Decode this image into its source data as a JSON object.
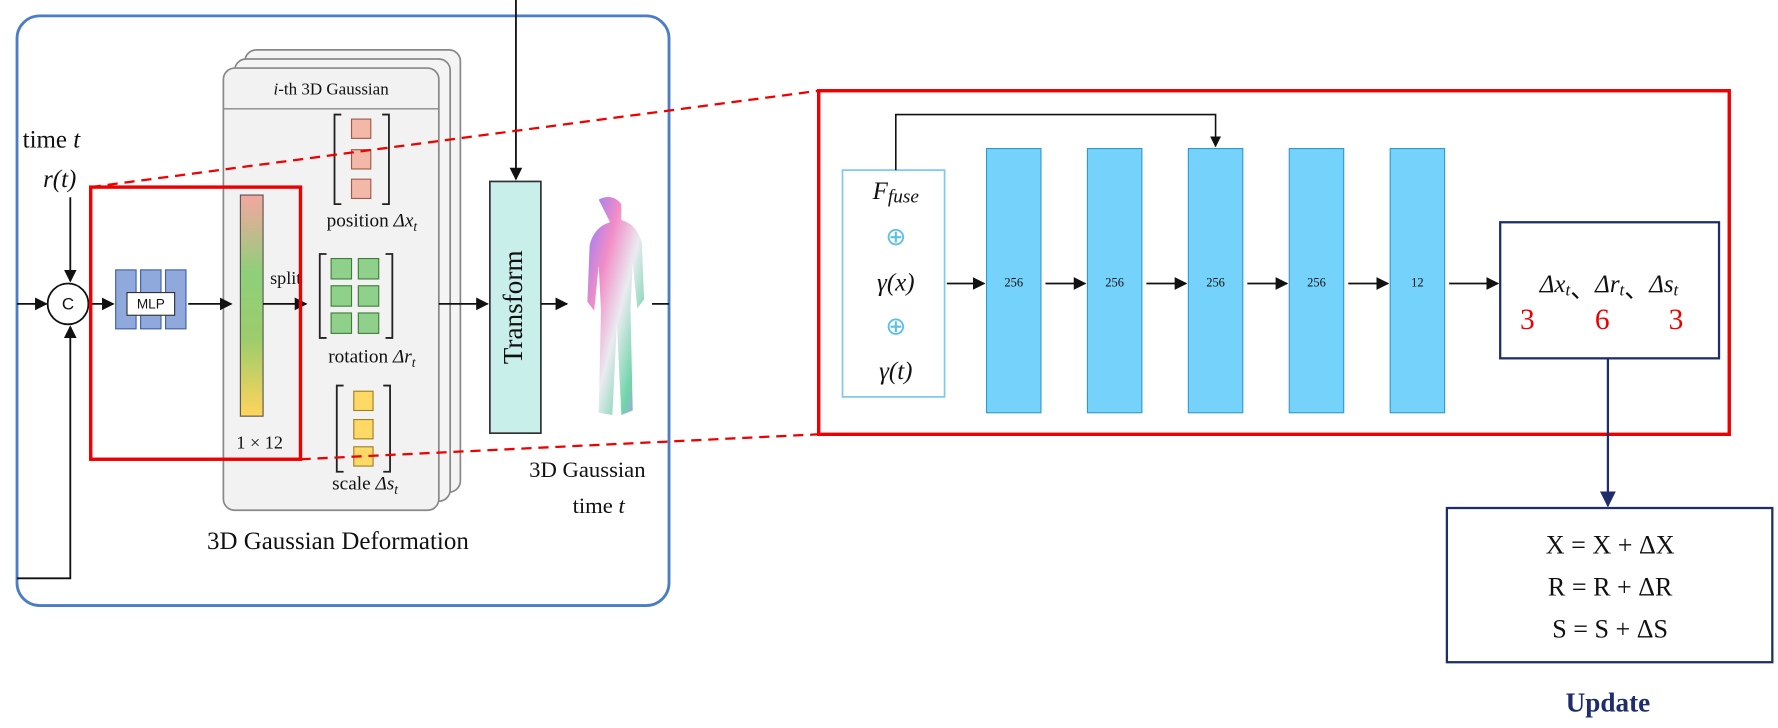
{
  "left_panel": {
    "title": "3D Gaussian Deformation",
    "time_label": {
      "text": "time",
      "var": "t"
    },
    "input_label": "r(t)",
    "concat": "C",
    "mlp": "MLP",
    "split": "split",
    "vector_size": "1 × 12",
    "card_title": {
      "var": "i",
      "text": "-th 3D Gaussian"
    },
    "position": {
      "text": "position",
      "symbol": "Δx",
      "sub": "t"
    },
    "rotation": {
      "text": "rotation",
      "symbol": "Δr",
      "sub": "t"
    },
    "scale": {
      "text": "scale",
      "symbol": "Δs",
      "sub": "t"
    },
    "transform": "Transform",
    "output_label": {
      "line1": "3D Gaussian",
      "line2": "time",
      "var": "t"
    }
  },
  "zoom_panel": {
    "inputs": {
      "f": "F",
      "f_sub": "fuse",
      "plus1": "⊕",
      "gx": "γ(x)",
      "plus2": "⊕",
      "gt": "γ(t)"
    },
    "layers": [
      "256",
      "256",
      "256",
      "256",
      "12"
    ],
    "outputs": {
      "items": [
        {
          "symbol": "Δx",
          "sub": "t",
          "sep": "、"
        },
        {
          "symbol": "Δr",
          "sub": "t",
          "sep": "、"
        },
        {
          "symbol": "Δs",
          "sub": "t",
          "sep": ""
        }
      ],
      "dims": [
        "3",
        "6",
        "3"
      ]
    },
    "update": {
      "equations": [
        "X = X + ΔX",
        "R = R + ΔR",
        "S = S + ΔS"
      ],
      "label": "Update"
    }
  }
}
